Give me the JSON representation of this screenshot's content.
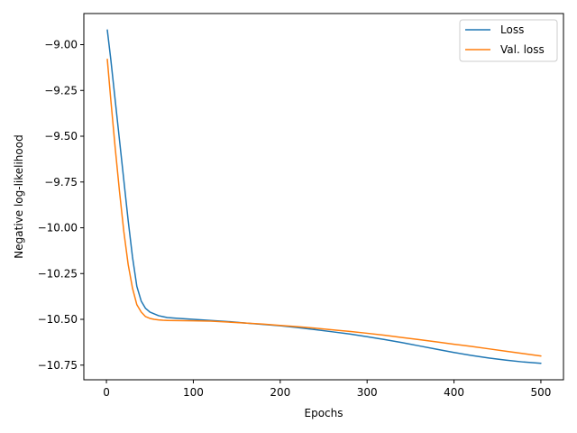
{
  "chart_data": {
    "type": "line",
    "title": "",
    "xlabel": "Epochs",
    "ylabel": "Negative log-likelihood",
    "xlim": [
      -26,
      526
    ],
    "ylim": [
      -10.83,
      -8.83
    ],
    "xticks": [
      0,
      100,
      200,
      300,
      400,
      500
    ],
    "xtick_labels": [
      "0",
      "100",
      "200",
      "300",
      "400",
      "500"
    ],
    "yticks": [
      -9.0,
      -9.25,
      -9.5,
      -9.75,
      -10.0,
      -10.25,
      -10.5,
      -10.75
    ],
    "ytick_labels": [
      "−9.00",
      "−9.25",
      "−9.50",
      "−9.75",
      "−10.00",
      "−10.25",
      "−10.50",
      "−10.75"
    ],
    "grid": false,
    "legend_position": "top-right",
    "series": [
      {
        "name": "Loss",
        "color": "#1f77b4",
        "x": [
          1,
          5,
          10,
          15,
          20,
          25,
          30,
          35,
          40,
          45,
          50,
          55,
          60,
          65,
          70,
          75,
          80,
          90,
          100,
          120,
          140,
          160,
          180,
          200,
          220,
          240,
          260,
          280,
          300,
          320,
          340,
          360,
          380,
          400,
          420,
          440,
          460,
          480,
          500
        ],
        "y": [
          -8.92,
          -9.08,
          -9.3,
          -9.52,
          -9.74,
          -9.96,
          -10.16,
          -10.32,
          -10.4,
          -10.44,
          -10.46,
          -10.47,
          -10.48,
          -10.485,
          -10.49,
          -10.492,
          -10.494,
          -10.497,
          -10.5,
          -10.506,
          -10.512,
          -10.52,
          -10.528,
          -10.535,
          -10.545,
          -10.556,
          -10.568,
          -10.58,
          -10.595,
          -10.61,
          -10.627,
          -10.645,
          -10.663,
          -10.681,
          -10.697,
          -10.711,
          -10.723,
          -10.733,
          -10.74
        ]
      },
      {
        "name": "Val. loss",
        "color": "#ff7f0e",
        "x": [
          1,
          5,
          10,
          15,
          20,
          25,
          30,
          35,
          40,
          45,
          50,
          55,
          60,
          65,
          70,
          80,
          100,
          120,
          140,
          160,
          180,
          200,
          220,
          240,
          260,
          280,
          300,
          320,
          340,
          360,
          380,
          400,
          420,
          440,
          460,
          480,
          500
        ],
        "y": [
          -9.08,
          -9.3,
          -9.56,
          -9.8,
          -10.02,
          -10.2,
          -10.33,
          -10.42,
          -10.46,
          -10.485,
          -10.495,
          -10.5,
          -10.503,
          -10.505,
          -10.506,
          -10.507,
          -10.508,
          -10.51,
          -10.515,
          -10.52,
          -10.526,
          -10.533,
          -10.54,
          -10.548,
          -10.557,
          -10.566,
          -10.576,
          -10.587,
          -10.599,
          -10.611,
          -10.623,
          -10.636,
          -10.648,
          -10.661,
          -10.674,
          -10.687,
          -10.7
        ]
      }
    ]
  }
}
